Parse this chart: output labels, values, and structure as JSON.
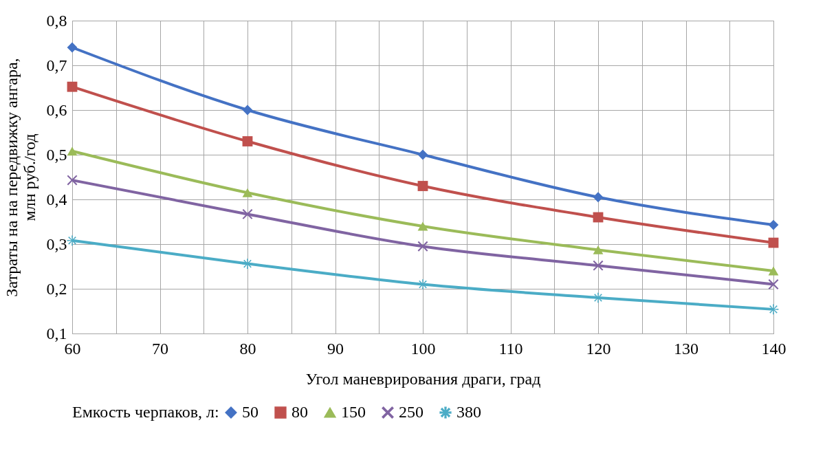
{
  "chart_data": {
    "type": "line",
    "xlabel": "Угол маневрирования драги, град",
    "ylabel": "Затраты на на передвижку ангара,\nмлн руб./год",
    "legend_title": "Емкость черпаков, л:",
    "x": [
      60,
      80,
      100,
      120,
      140
    ],
    "xlim": [
      60,
      140
    ],
    "xticks": [
      60,
      {
        "value": 65,
        "label": null
      },
      70,
      {
        "value": 75,
        "label": null
      },
      80,
      {
        "value": 85,
        "label": null
      },
      90,
      {
        "value": 95,
        "label": null
      },
      100,
      {
        "value": 105,
        "label": null
      },
      110,
      {
        "value": 115,
        "label": null
      },
      120,
      {
        "value": 125,
        "label": null
      },
      130,
      {
        "value": 135,
        "label": null
      },
      140
    ],
    "ylim": [
      0.1,
      0.8
    ],
    "yticks": [
      {
        "value": 0.1,
        "label": "0,1"
      },
      {
        "value": 0.2,
        "label": "0,2"
      },
      {
        "value": 0.3,
        "label": "0,3"
      },
      {
        "value": 0.4,
        "label": "0,4"
      },
      {
        "value": 0.5,
        "label": "0,5"
      },
      {
        "value": 0.6,
        "label": "0,6"
      },
      {
        "value": 0.7,
        "label": "0,7"
      },
      {
        "value": 0.8,
        "label": "0,8"
      }
    ],
    "grid": true,
    "legend": "bottom",
    "line_style": "solid",
    "series": [
      {
        "name": "50",
        "color": "#4472c4",
        "marker": "diamond",
        "values": [
          0.74,
          0.6,
          0.5,
          0.405,
          0.343
        ]
      },
      {
        "name": "80",
        "color": "#c0504d",
        "marker": "square",
        "values": [
          0.652,
          0.53,
          0.43,
          0.36,
          0.303
        ]
      },
      {
        "name": "150",
        "color": "#9bbb59",
        "marker": "triangle",
        "values": [
          0.508,
          0.415,
          0.34,
          0.287,
          0.24
        ]
      },
      {
        "name": "250",
        "color": "#8064a2",
        "marker": "cross",
        "values": [
          0.443,
          0.367,
          0.295,
          0.252,
          0.21
        ]
      },
      {
        "name": "380",
        "color": "#4bacc6",
        "marker": "star",
        "values": [
          0.308,
          0.256,
          0.21,
          0.18,
          0.154
        ]
      }
    ]
  }
}
